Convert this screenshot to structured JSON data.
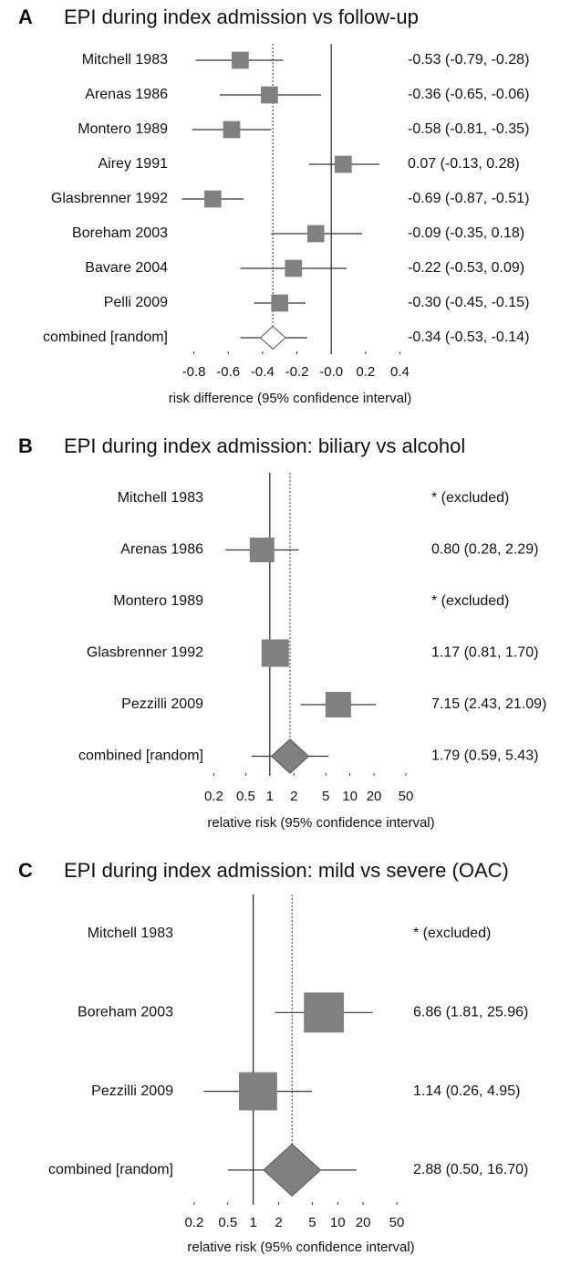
{
  "chart_data": [
    {
      "type": "forest",
      "panel": "A",
      "title": "EPI during index admission vs follow-up",
      "x_label": "risk difference (95% confidence interval)",
      "studies": [
        "Mitchell 1983",
        "Arenas 1986",
        "Montero 1989",
        "Airey 1991",
        "Glasbrenner 1992",
        "Boreham 2003",
        "Bavare 2004",
        "Pelli 2009"
      ],
      "values": [
        -0.53,
        -0.36,
        -0.58,
        0.07,
        -0.69,
        -0.09,
        -0.22,
        -0.3
      ],
      "lower": [
        -0.79,
        -0.65,
        -0.81,
        -0.13,
        -0.87,
        -0.35,
        -0.53,
        -0.45
      ],
      "upper": [
        -0.28,
        -0.06,
        -0.35,
        0.28,
        -0.51,
        0.18,
        0.09,
        -0.15
      ],
      "weights": [
        12,
        12,
        12,
        12,
        12,
        12,
        12,
        12
      ],
      "value_labels": [
        "-0.53 (-0.79, -0.28)",
        "-0.36 (-0.65, -0.06)",
        "-0.58 (-0.81, -0.35)",
        "0.07 (-0.13, 0.28)",
        "-0.69 (-0.87, -0.51)",
        "-0.09 (-0.35, 0.18)",
        "-0.22 (-0.53, 0.09)",
        "-0.30 (-0.45, -0.15)"
      ],
      "pooled": {
        "name": "combined [random]",
        "value": -0.34,
        "lower": -0.53,
        "upper": -0.14,
        "value_label": "-0.34 (-0.53, -0.14)"
      },
      "xlim": [
        -0.92,
        0.44
      ],
      "xticks": [
        -0.8,
        -0.6,
        -0.4,
        -0.2,
        {
          "value": 0,
          "label": "-0.0"
        },
        0.2,
        0.4
      ],
      "log": false,
      "reference_line": 0,
      "color": "#808080",
      "pooled_fill": "#ffffff"
    },
    {
      "type": "forest",
      "panel": "B",
      "title": "EPI during index admission: biliary vs alcohol",
      "x_label": "relative risk (95% confidence interval)",
      "studies": [
        "Mitchell 1983",
        "Arenas 1986",
        "Montero 1989",
        "Glasbrenner 1992",
        "Pezzilli 2009"
      ],
      "values": [
        null,
        0.8,
        null,
        1.17,
        7.15
      ],
      "lower": [
        null,
        0.28,
        null,
        0.81,
        2.43
      ],
      "upper": [
        null,
        2.29,
        null,
        1.7,
        21.09
      ],
      "weights": [
        null,
        25,
        null,
        31,
        27
      ],
      "value_labels": [
        "* (excluded)",
        "0.80 (0.28, 2.29)",
        "* (excluded)",
        "1.17 (0.81, 1.70)",
        "7.15 (2.43, 21.09)"
      ],
      "pooled": {
        "name": "combined [random]",
        "value": 1.79,
        "lower": 0.59,
        "upper": 5.43,
        "value_label": "1.79 (0.59, 5.43)"
      },
      "xlim": [
        0.1,
        50
      ],
      "xticks": [
        0.2,
        0.5,
        1,
        2,
        5,
        10,
        20,
        50
      ],
      "log": true,
      "reference_line": 1,
      "color": "#808080",
      "pooled_fill": "#808080"
    },
    {
      "type": "forest",
      "panel": "C",
      "title": "EPI during index admission: mild vs severe (OAC)",
      "x_label": "relative risk (95% confidence interval)",
      "studies": [
        "Mitchell 1983",
        "Boreham 2003",
        "Pezzilli 2009"
      ],
      "values": [
        null,
        6.86,
        1.14
      ],
      "lower": [
        null,
        1.81,
        0.26
      ],
      "upper": [
        null,
        25.96,
        4.95
      ],
      "weights": [
        null,
        66,
        60
      ],
      "value_labels": [
        "* (excluded)",
        "6.86 (1.81, 25.96)",
        "1.14 (0.26, 4.95)"
      ],
      "pooled": {
        "name": "combined [random]",
        "value": 2.88,
        "lower": 0.5,
        "upper": 16.7,
        "value_label": "2.88 (0.50, 16.70)"
      },
      "xlim": [
        0.1,
        50
      ],
      "xticks": [
        0.2,
        0.5,
        1,
        2,
        5,
        10,
        20,
        50
      ],
      "log": true,
      "reference_line": 1,
      "color": "#808080",
      "pooled_fill": "#808080"
    }
  ]
}
